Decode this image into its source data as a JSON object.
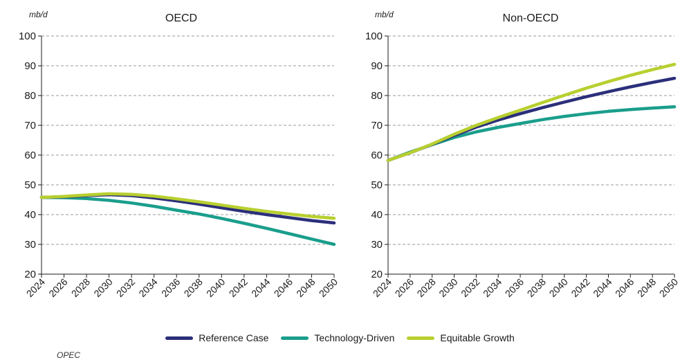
{
  "chart_data": [
    {
      "type": "line",
      "title": "OECD",
      "unit_label": "mb/d",
      "ylim": [
        20,
        100
      ],
      "yticks": [
        20,
        30,
        40,
        50,
        60,
        70,
        80,
        90,
        100
      ],
      "xticks": [
        "2024",
        "2026",
        "2028",
        "2030",
        "2032",
        "2034",
        "2036",
        "2038",
        "2040",
        "2042",
        "2044",
        "2046",
        "2048",
        "2050"
      ],
      "grid": "horizontal dashed",
      "x": [
        2024,
        2026,
        2028,
        2030,
        2032,
        2034,
        2036,
        2038,
        2040,
        2042,
        2044,
        2046,
        2048,
        2050
      ],
      "series": [
        {
          "name": "Reference Case",
          "color": "#2b2f7a",
          "values": [
            45.8,
            46.0,
            46.4,
            46.7,
            46.4,
            45.6,
            44.6,
            43.5,
            42.3,
            41.1,
            40.0,
            39.0,
            38.0,
            37.2
          ]
        },
        {
          "name": "Technology-Driven",
          "color": "#1a9e8c",
          "values": [
            45.8,
            45.7,
            45.4,
            44.8,
            43.9,
            42.8,
            41.5,
            40.2,
            38.7,
            37.1,
            35.4,
            33.6,
            31.8,
            30.0
          ]
        },
        {
          "name": "Equitable Growth",
          "color": "#b8cf2f",
          "values": [
            45.8,
            46.1,
            46.6,
            47.0,
            46.8,
            46.2,
            45.3,
            44.3,
            43.2,
            42.1,
            41.1,
            40.2,
            39.4,
            38.8
          ]
        }
      ]
    },
    {
      "type": "line",
      "title": "Non-OECD",
      "unit_label": "mb/d",
      "ylim": [
        20,
        100
      ],
      "yticks": [
        20,
        30,
        40,
        50,
        60,
        70,
        80,
        90,
        100
      ],
      "xticks": [
        "2024",
        "2026",
        "2028",
        "2030",
        "2032",
        "2034",
        "2036",
        "2038",
        "2040",
        "2042",
        "2044",
        "2046",
        "2048",
        "2050"
      ],
      "grid": "horizontal dashed",
      "x": [
        2024,
        2026,
        2028,
        2030,
        2032,
        2034,
        2036,
        2038,
        2040,
        2042,
        2044,
        2046,
        2048,
        2050
      ],
      "series": [
        {
          "name": "Reference Case",
          "color": "#2b2f7a",
          "values": [
            58.2,
            60.8,
            63.6,
            66.6,
            69.4,
            71.8,
            73.9,
            75.9,
            77.8,
            79.6,
            81.3,
            82.9,
            84.4,
            85.8
          ]
        },
        {
          "name": "Technology-Driven",
          "color": "#1a9e8c",
          "values": [
            58.2,
            61.0,
            63.5,
            65.9,
            67.8,
            69.3,
            70.6,
            71.9,
            73.0,
            73.9,
            74.7,
            75.3,
            75.8,
            76.2
          ]
        },
        {
          "name": "Equitable Growth",
          "color": "#b8cf2f",
          "values": [
            58.2,
            60.8,
            63.7,
            67.0,
            70.0,
            72.6,
            75.1,
            77.6,
            80.1,
            82.5,
            84.7,
            86.8,
            88.7,
            90.5
          ]
        }
      ]
    }
  ],
  "legend": [
    {
      "label": "Reference Case",
      "color": "#2b2f7a"
    },
    {
      "label": "Technology-Driven",
      "color": "#1a9e8c"
    },
    {
      "label": "Equitable Growth",
      "color": "#b8cf2f"
    }
  ],
  "source_text": "OPEC"
}
